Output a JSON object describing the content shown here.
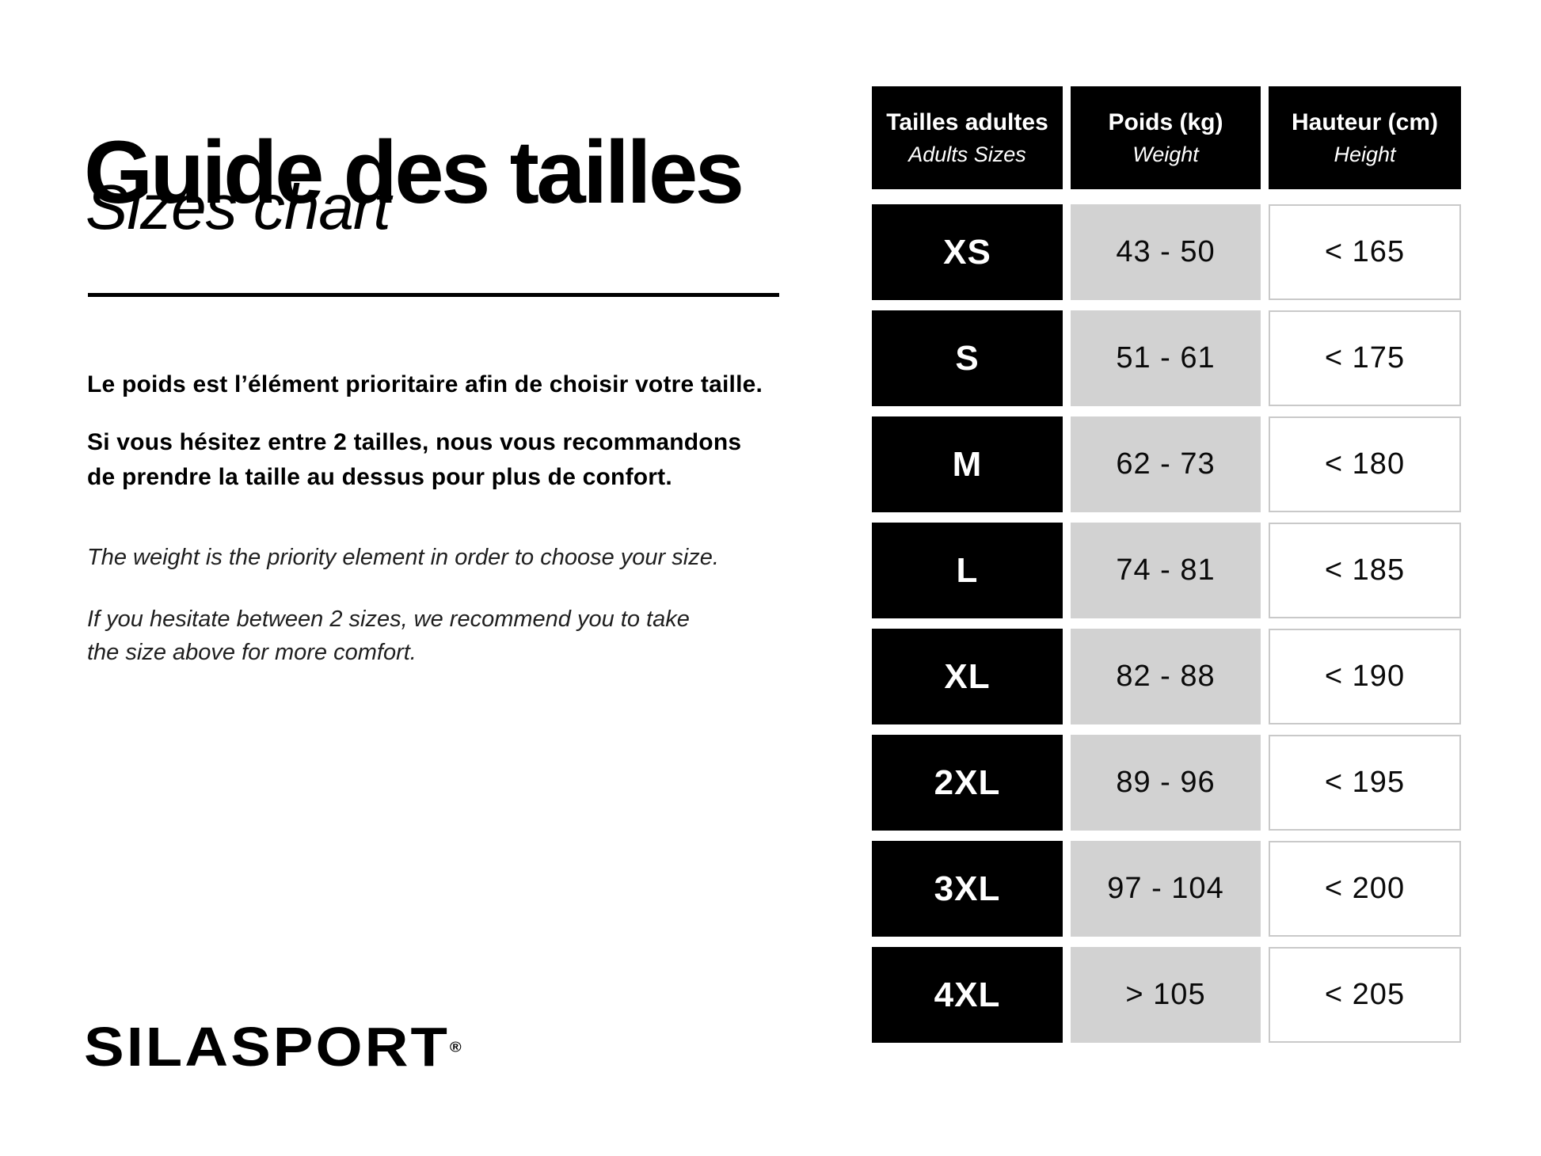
{
  "header": {
    "title_fr": "Guide des tailles",
    "title_en": "Sizes chart"
  },
  "intro": {
    "fr_line1": "Le poids est l’élément prioritaire afin de choisir votre taille.",
    "fr_line2a": "Si vous hésitez entre 2 tailles, nous vous recommandons",
    "fr_line2b": "de prendre la taille au dessus pour plus de confort.",
    "en_line1": "The weight is the priority element in order to choose your size.",
    "en_line2a": "If you hesitate between 2 sizes, we recommend you to take",
    "en_line2b": "the size above for more comfort."
  },
  "size_table": {
    "columns": [
      {
        "fr": "Tailles adultes",
        "en": "Adults Sizes"
      },
      {
        "fr": "Poids (kg)",
        "en": "Weight"
      },
      {
        "fr": "Hauteur (cm)",
        "en": "Height"
      }
    ],
    "rows": [
      {
        "size": "XS",
        "weight": "43 - 50",
        "height": "< 165"
      },
      {
        "size": "S",
        "weight": "51 - 61",
        "height": "< 175"
      },
      {
        "size": "M",
        "weight": "62 - 73",
        "height": "< 180"
      },
      {
        "size": "L",
        "weight": "74 - 81",
        "height": "< 185"
      },
      {
        "size": "XL",
        "weight": "82 - 88",
        "height": "< 190"
      },
      {
        "size": "2XL",
        "weight": "89 - 96",
        "height": "< 195"
      },
      {
        "size": "3XL",
        "weight": "97 - 104",
        "height": "< 200"
      },
      {
        "size": "4XL",
        "weight": "> 105",
        "height": "< 205"
      }
    ]
  },
  "logo": {
    "brand": "SILASPORT",
    "registered": "®"
  },
  "colors": {
    "black": "#000000",
    "cell_gray": "#d2d2d2",
    "cell_border": "#c9c9c9",
    "background": "#ffffff"
  }
}
